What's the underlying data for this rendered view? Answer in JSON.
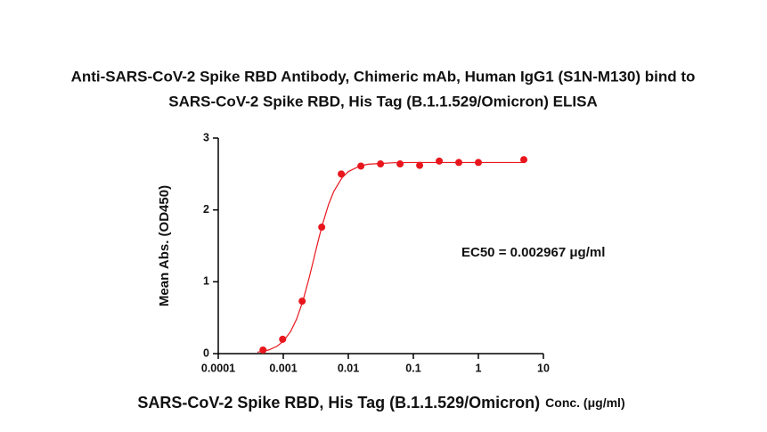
{
  "chart_data": {
    "type": "scatter",
    "title": [
      "Anti-SARS-CoV-2 Spike RBD Antibody, Chimeric mAb, Human IgG1 (S1N-M130) bind to",
      "SARS-CoV-2 Spike RBD, His Tag (B.1.1.529/Omicron) ELISA"
    ],
    "xlabel": [
      "SARS-CoV-2 Spike RBD, His Tag (B.1.1.529/Omicron)",
      "Conc. (μg/ml)"
    ],
    "ylabel": "Mean Abs. (OD450)",
    "annotation": "EC50 = 0.002967 μg/ml",
    "xscale": "log",
    "xlim": [
      0.0001,
      10
    ],
    "xticks": [
      0.0001,
      0.001,
      0.01,
      0.1,
      1,
      10
    ],
    "ylim": [
      0,
      3
    ],
    "yticks": [
      0,
      1,
      2,
      3
    ],
    "series": [
      {
        "mode": "markers",
        "color": "#e8171d",
        "x": [
          0.000488,
          0.000977,
          0.00195,
          0.0039,
          0.0078,
          0.0156,
          0.03125,
          0.0625,
          0.125,
          0.25,
          0.5,
          1,
          5
        ],
        "values": [
          0.05,
          0.2,
          0.73,
          1.76,
          2.5,
          2.61,
          2.64,
          2.64,
          2.62,
          2.68,
          2.66,
          2.66,
          2.7
        ]
      },
      {
        "mode": "line",
        "color": "#e8171d",
        "x": [
          0.0004,
          0.0006,
          0.0008,
          0.001,
          0.0013,
          0.0016,
          0.002,
          0.0025,
          0.003,
          0.0035,
          0.004,
          0.005,
          0.006,
          0.008,
          0.01,
          0.015,
          0.02,
          0.05,
          0.1,
          1,
          5
        ],
        "values": [
          0.019,
          0.051,
          0.102,
          0.172,
          0.309,
          0.478,
          0.731,
          1.055,
          1.348,
          1.597,
          1.797,
          2.083,
          2.26,
          2.447,
          2.533,
          2.611,
          2.636,
          2.657,
          2.66,
          2.66,
          2.66
        ]
      }
    ]
  }
}
